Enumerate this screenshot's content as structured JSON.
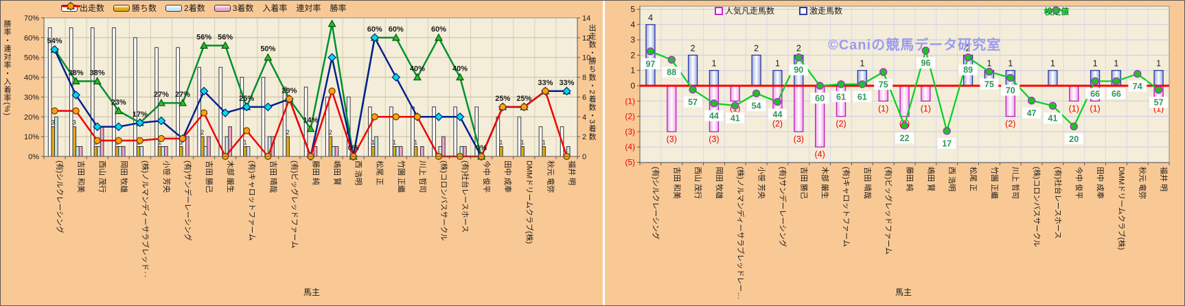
{
  "watermark": "©Caniの競馬データ研究室",
  "charts": {
    "left": {
      "x_title": "馬主",
      "y_left_title": "勝率・連対率・入着率(%)",
      "y_right_title": "出走数・勝ち数・2着数・3着数",
      "y_left_ticks": [
        "0%",
        "10%",
        "20%",
        "30%",
        "40%",
        "50%",
        "60%",
        "70%"
      ],
      "y_right_ticks": [
        "0",
        "2",
        "4",
        "6",
        "8",
        "10",
        "12",
        "14"
      ],
      "legend": [
        {
          "label": "出走数",
          "swatch": "bar",
          "color": "#ffffff"
        },
        {
          "label": "勝ち数",
          "swatch": "bar",
          "color": "#dfa918"
        },
        {
          "label": "2着数",
          "swatch": "bar",
          "color": "#c9e6ef"
        },
        {
          "label": "3着数",
          "swatch": "bar",
          "color": "#efa6cb"
        },
        {
          "label": "入着率",
          "swatch": "line",
          "color": "#008f2d",
          "marker": "triangle"
        },
        {
          "label": "連対率",
          "swatch": "line",
          "color": "#001f8f",
          "marker": "diamond"
        },
        {
          "label": "勝率",
          "swatch": "line",
          "color": "#f00000",
          "marker": "circle"
        }
      ]
    },
    "right": {
      "x_title": "馬主",
      "y_ticks": [
        "5",
        "4",
        "3",
        "2",
        "1",
        "0",
        "(1)",
        "(2)",
        "(3)",
        "(4)",
        "(5)"
      ],
      "legend_bars": [
        {
          "label": "人気凡走馬数",
          "border": "#cc22cc"
        },
        {
          "label": "激走馬数",
          "border": "#2a3a9a"
        }
      ],
      "legend_line": {
        "label": "検定値",
        "color": "#00b830"
      }
    }
  },
  "chart_data": [
    {
      "id": "owners-results",
      "type": "bar",
      "subtype": "bar+line combo",
      "xlabel": "馬主",
      "ylabel_left": "勝率・連対率・入着率(%)",
      "ylabel_right": "出走数・勝ち数・2着数・3着数",
      "ylim_percent": [
        0,
        70
      ],
      "ylim_count": [
        0,
        14
      ],
      "grid": true,
      "categories": [
        "(有)シルクレーシング",
        "吉田 和美",
        "西山 茂行",
        "岡田 牧雄",
        "(株)ノルマンディーサラブレッド‥",
        "小笹 芳央",
        "(有)サンデーレーシング",
        "吉田 勝己",
        "木部 厳生",
        "(有)キャロットファーム",
        "吉田 晴哉",
        "(有)ビッグレッドファーム",
        "藤田 純",
        "嶋田 賢",
        "西 浩明",
        "松尾 正",
        "竹園 正繼",
        "川上 哲司",
        "(株)コロンバスサークル",
        "(有)社台レースホース",
        "今中 俊平",
        "田中 成奉",
        "DMMドリームクラブ(株)",
        "秋元 竜弥",
        "福井 明"
      ],
      "series": [
        {
          "name": "出走数",
          "type": "bar",
          "axis": "count",
          "color": "#ffffff",
          "values": [
            13,
            13,
            13,
            13,
            12,
            11,
            11,
            9,
            9,
            8,
            8,
            7,
            7,
            6,
            6,
            5,
            5,
            5,
            5,
            5,
            5,
            4,
            4,
            3,
            3
          ]
        },
        {
          "name": "勝ち数",
          "type": "bar",
          "axis": "count",
          "color": "#dfa918",
          "show_labels": true,
          "values": [
            3,
            3,
            1,
            1,
            1,
            1,
            1,
            2,
            0,
            1,
            0,
            2,
            0,
            2,
            0,
            1,
            1,
            1,
            0,
            0,
            0,
            1,
            1,
            1,
            0
          ]
        },
        {
          "name": "2着数",
          "type": "bar",
          "axis": "count",
          "color": "#c9e6ef",
          "values": [
            4,
            1,
            1,
            1,
            1,
            1,
            0,
            1,
            2,
            1,
            2,
            0,
            0,
            1,
            0,
            2,
            1,
            0,
            1,
            1,
            0,
            0,
            0,
            0,
            1
          ]
        },
        {
          "name": "3着数",
          "type": "bar",
          "axis": "count",
          "color": "#efa6cb",
          "values": [
            0,
            1,
            3,
            1,
            0,
            1,
            2,
            2,
            3,
            0,
            2,
            0,
            1,
            1,
            0,
            0,
            1,
            1,
            2,
            1,
            0,
            0,
            0,
            0,
            0
          ]
        },
        {
          "name": "入着率",
          "type": "line",
          "axis": "percent",
          "color": "#008f2d",
          "marker": "triangle",
          "values": [
            54,
            38,
            38,
            23,
            17,
            27,
            27,
            56,
            56,
            25,
            50,
            29,
            14,
            67,
            0,
            60,
            60,
            40,
            60,
            40,
            0,
            25,
            25,
            33,
            33
          ]
        },
        {
          "name": "連対率",
          "type": "line",
          "axis": "percent",
          "color": "#001f8f",
          "marker": "diamond",
          "values": [
            54,
            31,
            15,
            15,
            17,
            18,
            9,
            33,
            22,
            25,
            25,
            29,
            0,
            50,
            0,
            60,
            40,
            20,
            20,
            20,
            0,
            25,
            25,
            33,
            33
          ]
        },
        {
          "name": "勝率",
          "type": "line",
          "axis": "percent",
          "color": "#f00000",
          "marker": "circle",
          "values": [
            23,
            23,
            8,
            8,
            8,
            9,
            9,
            22,
            0,
            13,
            0,
            29,
            0,
            33,
            0,
            20,
            20,
            20,
            0,
            0,
            0,
            25,
            25,
            33,
            0
          ]
        }
      ],
      "point_labels": [
        "54%",
        "38%",
        "38%",
        "23%",
        "17%",
        "27%",
        "27%",
        "56%",
        "56%",
        "25%",
        "50%",
        "29%",
        "14%",
        "",
        "0%",
        "60%",
        "60%",
        "40%",
        "60%",
        "40%",
        "0%",
        "25%",
        "25%",
        "33%",
        "33%"
      ]
    },
    {
      "id": "owners-test-values",
      "type": "bar",
      "subtype": "bar+line combo",
      "xlabel": "馬主",
      "ylim": [
        -5,
        5
      ],
      "zero_line_color": "#ff0000",
      "grid": true,
      "categories": [
        "(有)シルクレーシング",
        "吉田 和美",
        "西山 茂行",
        "岡田 牧雄",
        "(株)ノルマンディーサラブレッドレー…",
        "小笹 芳央",
        "(有)サンデーレーシング",
        "吉田 勝己",
        "木部 厳生",
        "(有)キャロットファーム",
        "吉田 晴哉",
        "(有)ビッグレッドファーム",
        "藤田 純",
        "嶋田 賢",
        "西 浩明",
        "松尾 正",
        "竹園 正繼",
        "川上 哲司",
        "(株)コロンバスサークル",
        "(有)社台レースホース",
        "今中 俊平",
        "田中 成奉",
        "DMMドリームクラブ(株)",
        "秋元 竜弥",
        "福井 明"
      ],
      "series": [
        {
          "name": "人気凡走馬数",
          "type": "bar",
          "color": "#f6bdf0",
          "border": "#b81cb8",
          "values": [
            0,
            -3,
            0,
            -3,
            -1,
            0,
            -2,
            -3,
            -4,
            -2,
            0,
            -1,
            -2,
            -1,
            0,
            0,
            0,
            -2,
            0,
            0,
            -1,
            -1,
            0,
            0,
            -1
          ]
        },
        {
          "name": "激走馬数",
          "type": "bar",
          "color": "#aebde8",
          "border": "#2a3a9a",
          "values": [
            4,
            0,
            2,
            1,
            0,
            2,
            1,
            2,
            0,
            0,
            1,
            0,
            0,
            0,
            0,
            2,
            1,
            1,
            0,
            1,
            0,
            1,
            1,
            0,
            1
          ]
        },
        {
          "name": "検定値",
          "type": "line",
          "color": "#00b830",
          "marker": "dot",
          "values": [
            2.25,
            1.7,
            -0.25,
            -1.15,
            -1.3,
            -0.5,
            -1.05,
            1.85,
            0.0,
            0.1,
            0.1,
            0.9,
            -2.6,
            2.3,
            -2.95,
            1.85,
            0.92,
            0.52,
            -0.97,
            -1.31,
            -2.66,
            0.3,
            0.3,
            0.78,
            -0.27
          ],
          "point_labels": [
            "97",
            "88",
            "57",
            "44",
            "41",
            "54",
            "44",
            "90",
            "60",
            "61",
            "61",
            "75",
            "22",
            "96",
            "17",
            "89",
            "75",
            "70",
            "47",
            "41",
            "20",
            "66",
            "66",
            "74",
            "57"
          ]
        }
      ]
    }
  ]
}
